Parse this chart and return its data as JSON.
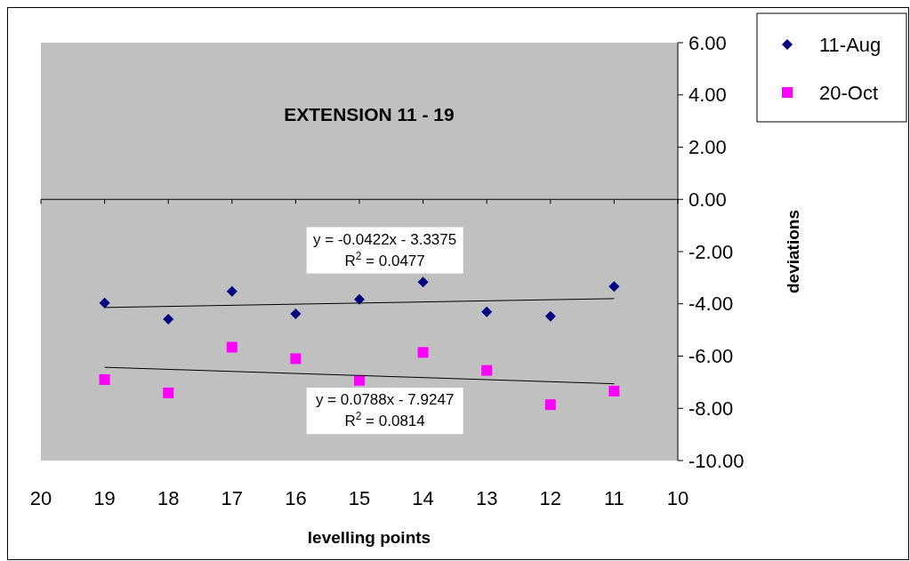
{
  "chart_data": {
    "type": "scatter",
    "title": "EXTENSION 11 - 19",
    "xlabel": "levelling points",
    "ylabel": "deviations",
    "xlim": [
      20,
      10
    ],
    "xticks": [
      20,
      19,
      18,
      17,
      16,
      15,
      14,
      13,
      12,
      11,
      10
    ],
    "ylim": [
      -10,
      6
    ],
    "yticks": [
      {
        "value": 6,
        "label": "6.00"
      },
      {
        "value": 4,
        "label": "4.00"
      },
      {
        "value": 2,
        "label": "2.00"
      },
      {
        "value": 0,
        "label": "0.00"
      },
      {
        "value": -2,
        "label": "-2.00"
      },
      {
        "value": -4,
        "label": "-4.00"
      },
      {
        "value": -6,
        "label": "-6.00"
      },
      {
        "value": -8,
        "label": "-8.00"
      },
      {
        "value": -10,
        "label": "-10.00"
      }
    ],
    "legend": "top right",
    "series": [
      {
        "name": "11-Aug",
        "color": "#000080",
        "marker": "diamond",
        "x": [
          19,
          18,
          17,
          16,
          15,
          14,
          13,
          12,
          11
        ],
        "values": [
          -3.97,
          -4.59,
          -3.52,
          -4.38,
          -3.83,
          -3.17,
          -4.31,
          -4.48,
          -3.34
        ]
      },
      {
        "name": "20-Oct",
        "color": "#ff00ff",
        "marker": "square",
        "x": [
          19,
          18,
          17,
          16,
          15,
          14,
          13,
          12,
          11
        ],
        "values": [
          -6.9,
          -7.41,
          -5.66,
          -6.1,
          -6.93,
          -5.86,
          -6.55,
          -7.86,
          -7.34
        ]
      },
      {
        "type": "line",
        "color": "#000000",
        "marker": "none",
        "x": [
          19,
          11
        ],
        "values": [
          -4.14,
          -3.8
        ]
      },
      {
        "type": "line",
        "color": "#000000",
        "marker": "none",
        "x": [
          19,
          11
        ],
        "values": [
          -6.43,
          -7.06
        ]
      }
    ],
    "annotations": [
      "y = -0.0422x - 3.3375\nR$^{2}$ = 0.0477",
      "y = 0.0788x - 7.9247\nR$^{2}$ = 0.0814"
    ]
  }
}
